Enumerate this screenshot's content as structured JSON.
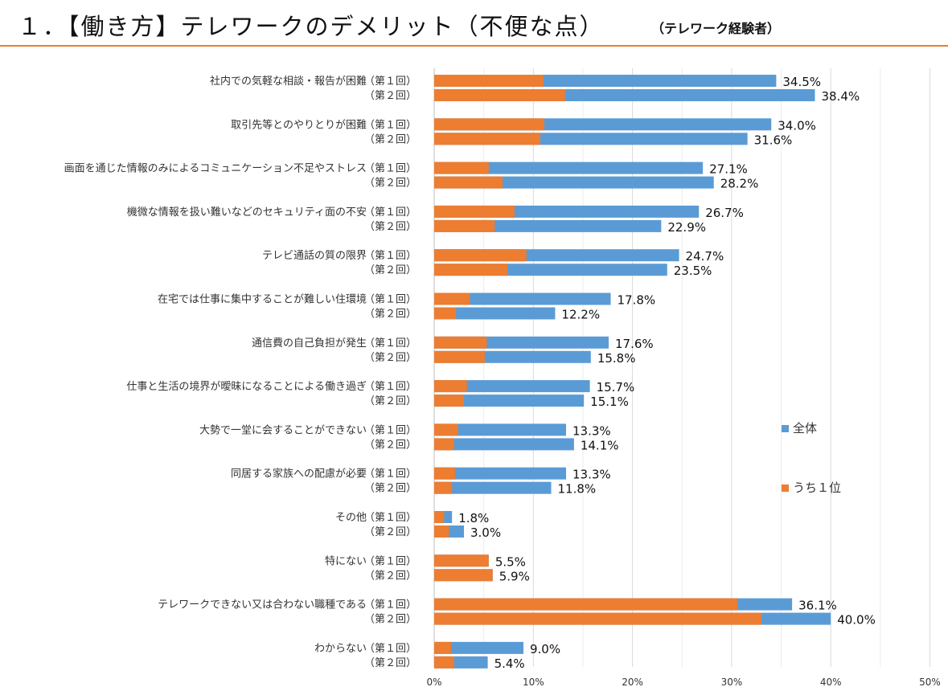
{
  "page": {
    "title": "１．【働き方】テレワークのデメリット（不便な点）",
    "subtitle": "（テレワーク経験者）"
  },
  "colors": {
    "total": "#5b9bd5",
    "top1": "#ed7d31",
    "accent_line": "#e87d2f",
    "grid": "#d9d9d9"
  },
  "legend": {
    "total_label": "全体",
    "top1_label": "うち１位"
  },
  "chart_data": {
    "type": "bar",
    "orientation": "horizontal",
    "stacked_overlay": true,
    "xlim": [
      0,
      50
    ],
    "xticks": [
      "0%",
      "10%",
      "20%",
      "30%",
      "40%",
      "50%"
    ],
    "grid": true,
    "legend_placement": "right",
    "round_labels": [
      "（第１回）",
      "（第２回）"
    ],
    "series": [
      {
        "name": "全体",
        "key": "total"
      },
      {
        "name": "うち１位",
        "key": "top1"
      }
    ],
    "categories": [
      {
        "label": "社内での気軽な相談・報告が困難",
        "total": [
          34.5,
          38.4
        ],
        "total_labels": [
          "34.5%",
          "38.4%"
        ],
        "top1": [
          11.0,
          13.2
        ]
      },
      {
        "label": "取引先等とのやりとりが困難",
        "total": [
          34.0,
          31.6
        ],
        "total_labels": [
          "34.0%",
          "31.6%"
        ],
        "top1": [
          11.1,
          10.7
        ]
      },
      {
        "label": "画面を通じた情報のみによるコミュニケーション不足やストレス",
        "total": [
          27.1,
          28.2
        ],
        "total_labels": [
          "27.1%",
          "28.2%"
        ],
        "top1": [
          5.5,
          6.9
        ]
      },
      {
        "label": "機微な情報を扱い難いなどのセキュリティ面の不安",
        "total": [
          26.7,
          22.9
        ],
        "total_labels": [
          "26.7%",
          "22.9%"
        ],
        "top1": [
          8.1,
          6.1
        ]
      },
      {
        "label": "テレビ通話の質の限界",
        "total": [
          24.7,
          23.5
        ],
        "total_labels": [
          "24.7%",
          "23.5%"
        ],
        "top1": [
          9.3,
          7.4
        ]
      },
      {
        "label": "在宅では仕事に集中することが難しい住環境",
        "total": [
          17.8,
          12.2
        ],
        "total_labels": [
          "17.8%",
          "12.2%"
        ],
        "top1": [
          3.6,
          2.2
        ]
      },
      {
        "label": "通信費の自己負担が発生",
        "total": [
          17.6,
          15.8
        ],
        "total_labels": [
          "17.6%",
          "15.8%"
        ],
        "top1": [
          5.3,
          5.1
        ]
      },
      {
        "label": "仕事と生活の境界が曖昧になることによる働き過ぎ",
        "total": [
          15.7,
          15.1
        ],
        "total_labels": [
          "15.7%",
          "15.1%"
        ],
        "top1": [
          3.3,
          3.0
        ]
      },
      {
        "label": "大勢で一堂に会することができない",
        "total": [
          13.3,
          14.1
        ],
        "total_labels": [
          "13.3%",
          "14.1%"
        ],
        "top1": [
          2.4,
          2.0
        ]
      },
      {
        "label": "同居する家族への配慮が必要",
        "total": [
          13.3,
          11.8
        ],
        "total_labels": [
          "13.3%",
          "11.8%"
        ],
        "top1": [
          2.1,
          1.8
        ]
      },
      {
        "label": "その他",
        "total": [
          1.8,
          3.0
        ],
        "total_labels": [
          "1.8%",
          "3.0%"
        ],
        "top1": [
          1.0,
          1.5
        ]
      },
      {
        "label": "特にない",
        "total": [
          5.5,
          5.9
        ],
        "total_labels": [
          "5.5%",
          "5.9%"
        ],
        "top1": [
          5.5,
          5.9
        ]
      },
      {
        "label": "テレワークできない又は合わない職種である",
        "total": [
          36.1,
          40.0
        ],
        "total_labels": [
          "36.1%",
          "40.0%"
        ],
        "top1": [
          30.6,
          33.0
        ]
      },
      {
        "label": "わからない",
        "total": [
          9.0,
          5.4
        ],
        "total_labels": [
          "9.0%",
          "5.4%"
        ],
        "top1": [
          1.7,
          2.0
        ]
      }
    ]
  }
}
